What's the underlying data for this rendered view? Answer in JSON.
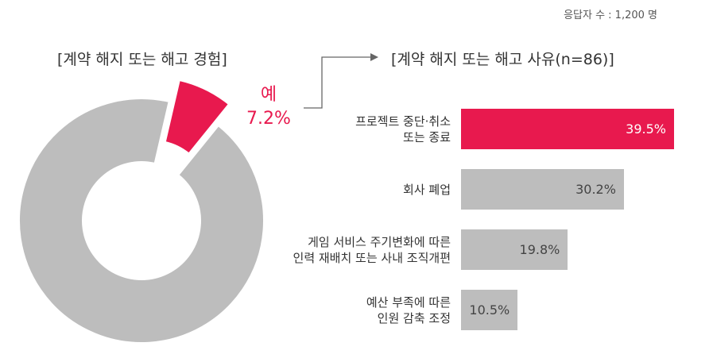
{
  "header": {
    "respondents": "응답자 수 : 1,200 명"
  },
  "colors": {
    "highlight": "#e8194e",
    "neutral": "#bdbdbd",
    "text": "#333333"
  },
  "chart_data": [
    {
      "type": "pie",
      "variant": "donut",
      "title": "[계약 해지 또는 해고 경험]",
      "slices": [
        {
          "label": "예",
          "value": 7.2,
          "display": "7.2%",
          "color": "#e8194e",
          "exploded": true
        },
        {
          "label": "",
          "value": 92.8,
          "color": "#bdbdbd",
          "exploded": false
        }
      ]
    },
    {
      "type": "bar",
      "orientation": "horizontal",
      "title": "[계약 해지 또는 해고 사유(n=86)]",
      "categories": [
        "프로젝트 중단·취소\n또는 종료",
        "회사 폐업",
        "게임 서비스 주기변화에 따른\n인력 재배치 또는 사내 조직개편",
        "예산 부족에 따른\n인원 감축 조정"
      ],
      "values": [
        39.5,
        30.2,
        19.8,
        10.5
      ],
      "labels": [
        "39.5%",
        "30.2%",
        "19.8%",
        "10.5%"
      ],
      "highlight_index": 0
    }
  ]
}
